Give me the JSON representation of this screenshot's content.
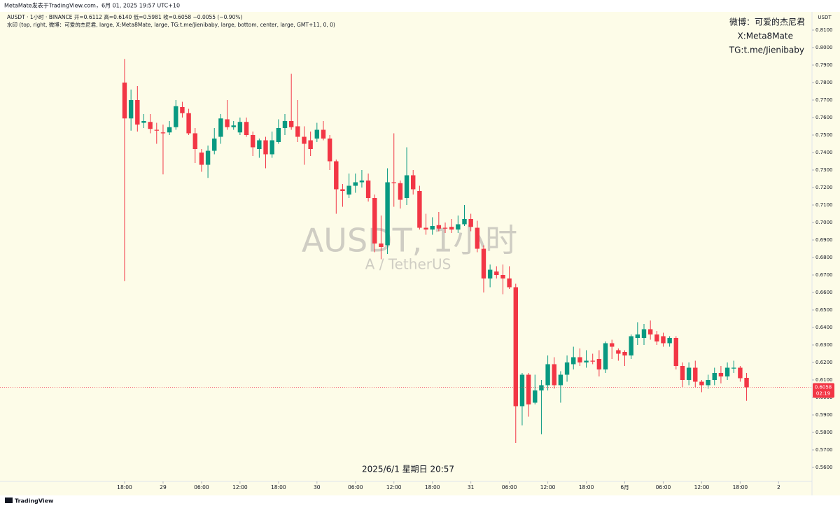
{
  "page": {
    "byline": "MetaMate发表于TradingView.com，6月 01, 2025 19:57 UTC+10",
    "symbol_line": "AUSDT · 1小时 · BINANCE  开=0.6112  高=0.6140  低=0.5981  收=0.6058  −0.0055 (−0.90%)",
    "watermark_line": "水印 (top, right, 微博：可爱的杰尼君, large, X:Meta8Mate, large, TG:t.me/Jienibaby, large, bottom, center, large, GMT+11, 0, 0)",
    "corner_marks": [
      "微博：可爱的杰尼君",
      "X:Meta8Mate",
      "TG:t.me/Jienibaby"
    ],
    "center_watermark": "AUSDT, 1小时",
    "center_sub": "A / TetherUS",
    "bottom_caption": "2025/6/1 星期日 20:57",
    "logo": "TradingView"
  },
  "chart_data": {
    "type": "candlestick",
    "up_color": "#089981",
    "down_color": "#f23645",
    "y_axis_label": "USDT",
    "last_price": 0.6058,
    "countdown": "02:19",
    "grid": false,
    "open": [
      0.78,
      0.7595,
      0.77,
      0.757,
      0.7575,
      0.753,
      0.7515,
      0.7515,
      0.7545,
      0.766,
      0.7625,
      0.751,
      0.74,
      0.733,
      0.741,
      0.749,
      0.759,
      0.7545,
      0.7515,
      0.7575,
      0.75,
      0.742,
      0.747,
      0.739,
      0.746,
      0.754,
      0.758,
      0.755,
      0.749,
      0.747,
      0.748,
      0.753,
      0.748,
      0.735,
      0.719,
      0.716,
      0.721,
      0.723,
      0.724,
      0.714,
      0.688,
      0.687,
      0.723,
      0.7225,
      0.714,
      0.727,
      0.718,
      0.697,
      0.696,
      0.6985,
      0.697,
      0.6975,
      0.696,
      0.699,
      0.702,
      0.697,
      0.685,
      0.668,
      0.672,
      0.67,
      0.668,
      0.663,
      0.595,
      0.613,
      0.597,
      0.604,
      0.607,
      0.619,
      0.607,
      0.613,
      0.619,
      0.623,
      0.62,
      0.621,
      0.622,
      0.616,
      0.631,
      0.627,
      0.626,
      0.624,
      0.634,
      0.634,
      0.639,
      0.636,
      0.635,
      0.631,
      0.634,
      0.618,
      0.61,
      0.617,
      0.609,
      0.607,
      0.61,
      0.614,
      0.612,
      0.6165,
      0.617,
      0.6112
    ],
    "high": [
      0.7935,
      0.776,
      0.778,
      0.762,
      0.762,
      0.757,
      0.756,
      0.758,
      0.77,
      0.769,
      0.765,
      0.754,
      0.742,
      0.744,
      0.754,
      0.762,
      0.77,
      0.758,
      0.76,
      0.76,
      0.752,
      0.748,
      0.749,
      0.752,
      0.759,
      0.762,
      0.785,
      0.77,
      0.755,
      0.752,
      0.757,
      0.758,
      0.75,
      0.736,
      0.722,
      0.728,
      0.728,
      0.73,
      0.728,
      0.716,
      0.704,
      0.731,
      0.751,
      0.724,
      0.743,
      0.73,
      0.721,
      0.705,
      0.703,
      0.706,
      0.7,
      0.702,
      0.704,
      0.71,
      0.705,
      0.701,
      0.687,
      0.676,
      0.675,
      0.676,
      0.675,
      0.665,
      0.614,
      0.614,
      0.613,
      0.61,
      0.624,
      0.623,
      0.615,
      0.624,
      0.629,
      0.628,
      0.627,
      0.625,
      0.627,
      0.632,
      0.633,
      0.628,
      0.627,
      0.636,
      0.643,
      0.642,
      0.644,
      0.638,
      0.637,
      0.635,
      0.635,
      0.62,
      0.62,
      0.621,
      0.61,
      0.613,
      0.617,
      0.618,
      0.62,
      0.621,
      0.618,
      0.614
    ],
    "low": [
      0.6665,
      0.7525,
      0.752,
      0.754,
      0.751,
      0.745,
      0.7275,
      0.75,
      0.753,
      0.76,
      0.75,
      0.734,
      0.729,
      0.7255,
      0.739,
      0.745,
      0.753,
      0.753,
      0.75,
      0.749,
      0.738,
      0.737,
      0.731,
      0.737,
      0.745,
      0.75,
      0.753,
      0.746,
      0.733,
      0.738,
      0.746,
      0.747,
      0.73,
      0.705,
      0.709,
      0.714,
      0.717,
      0.72,
      0.712,
      0.683,
      0.679,
      0.682,
      0.709,
      0.708,
      0.71,
      0.716,
      0.696,
      0.693,
      0.693,
      0.695,
      0.694,
      0.694,
      0.694,
      0.698,
      0.695,
      0.683,
      0.66,
      0.663,
      0.668,
      0.659,
      0.662,
      0.574,
      0.584,
      0.589,
      0.596,
      0.579,
      0.604,
      0.605,
      0.597,
      0.609,
      0.616,
      0.618,
      0.617,
      0.619,
      0.612,
      0.614,
      0.622,
      0.621,
      0.618,
      0.622,
      0.63,
      0.63,
      0.633,
      0.63,
      0.629,
      0.629,
      0.616,
      0.606,
      0.607,
      0.606,
      0.603,
      0.605,
      0.607,
      0.608,
      0.61,
      0.614,
      0.609,
      0.5981
    ],
    "close": [
      0.7595,
      0.77,
      0.756,
      0.758,
      0.7535,
      0.7525,
      0.751,
      0.7545,
      0.7665,
      0.7625,
      0.751,
      0.742,
      0.733,
      0.741,
      0.748,
      0.7595,
      0.7545,
      0.7555,
      0.7575,
      0.75,
      0.743,
      0.747,
      0.739,
      0.747,
      0.754,
      0.758,
      0.7545,
      0.749,
      0.745,
      0.742,
      0.753,
      0.748,
      0.735,
      0.719,
      0.718,
      0.721,
      0.723,
      0.724,
      0.714,
      0.688,
      0.686,
      0.723,
      0.7225,
      0.713,
      0.727,
      0.719,
      0.697,
      0.696,
      0.698,
      0.6965,
      0.6965,
      0.696,
      0.699,
      0.702,
      0.6975,
      0.685,
      0.668,
      0.673,
      0.67,
      0.668,
      0.663,
      0.595,
      0.613,
      0.596,
      0.604,
      0.607,
      0.619,
      0.607,
      0.613,
      0.62,
      0.623,
      0.62,
      0.621,
      0.6205,
      0.616,
      0.631,
      0.629,
      0.625,
      0.624,
      0.635,
      0.636,
      0.639,
      0.636,
      0.632,
      0.631,
      0.634,
      0.618,
      0.61,
      0.617,
      0.609,
      0.607,
      0.61,
      0.614,
      0.612,
      0.617,
      0.617,
      0.611,
      0.6058
    ],
    "xlim": [
      -19.43,
      107.2
    ],
    "xticks": [
      {
        "value": 0,
        "label": "18:00"
      },
      {
        "value": 6,
        "label": "29"
      },
      {
        "value": 12,
        "label": "06:00"
      },
      {
        "value": 18,
        "label": "12:00"
      },
      {
        "value": 24,
        "label": "18:00"
      },
      {
        "value": 30,
        "label": "30"
      },
      {
        "value": 36,
        "label": "06:00"
      },
      {
        "value": 42,
        "label": "12:00"
      },
      {
        "value": 48,
        "label": "18:00"
      },
      {
        "value": 54,
        "label": "31"
      },
      {
        "value": 60,
        "label": "06:00"
      },
      {
        "value": 66,
        "label": "12:00"
      },
      {
        "value": 72,
        "label": "18:00"
      },
      {
        "value": 78,
        "label": "6月"
      },
      {
        "value": 84,
        "label": "06:00"
      },
      {
        "value": 90,
        "label": "12:00"
      },
      {
        "value": 96,
        "label": "18:00"
      },
      {
        "value": 102,
        "label": "2"
      }
    ],
    "ylim": [
      0.552,
      0.8204
    ],
    "yticks": [
      {
        "value": 0.56,
        "label": "0.5600"
      },
      {
        "value": 0.57,
        "label": "0.5700"
      },
      {
        "value": 0.58,
        "label": "0.5800"
      },
      {
        "value": 0.59,
        "label": "0.5900"
      },
      {
        "value": 0.6,
        "label": "0.6000"
      },
      {
        "value": 0.61,
        "label": "0.6100"
      },
      {
        "value": 0.62,
        "label": "0.6200"
      },
      {
        "value": 0.63,
        "label": "0.6300"
      },
      {
        "value": 0.64,
        "label": "0.6400"
      },
      {
        "value": 0.65,
        "label": "0.6500"
      },
      {
        "value": 0.66,
        "label": "0.6600"
      },
      {
        "value": 0.67,
        "label": "0.6700"
      },
      {
        "value": 0.68,
        "label": "0.6800"
      },
      {
        "value": 0.69,
        "label": "0.6900"
      },
      {
        "value": 0.7,
        "label": "0.7000"
      },
      {
        "value": 0.71,
        "label": "0.7100"
      },
      {
        "value": 0.72,
        "label": "0.7200"
      },
      {
        "value": 0.73,
        "label": "0.7300"
      },
      {
        "value": 0.74,
        "label": "0.7400"
      },
      {
        "value": 0.75,
        "label": "0.7500"
      },
      {
        "value": 0.76,
        "label": "0.7600"
      },
      {
        "value": 0.77,
        "label": "0.7700"
      },
      {
        "value": 0.78,
        "label": "0.7800"
      },
      {
        "value": 0.79,
        "label": "0.7900"
      },
      {
        "value": 0.8,
        "label": "0.8000"
      },
      {
        "value": 0.81,
        "label": "0.8100"
      }
    ]
  }
}
